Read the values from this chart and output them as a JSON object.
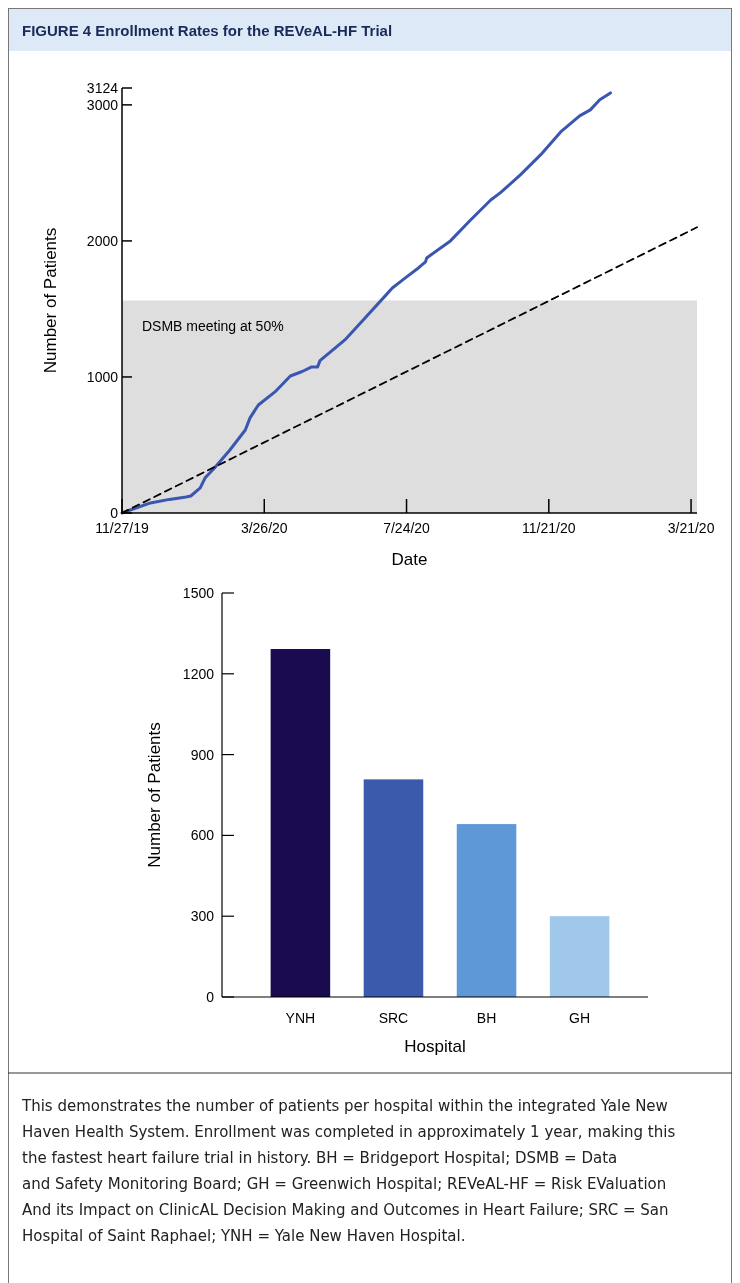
{
  "chart_data": [
    {
      "type": "line",
      "title": "FIGURE 4 Enrollment Rates for the REVeAL-HF Trial",
      "xlabel": "Date",
      "ylabel": "Number of Patients",
      "xlim": [
        "2019-11-27",
        "2021-03-26"
      ],
      "ylim": [
        0,
        3124
      ],
      "xticks": [
        {
          "value": "2019-11-27",
          "label": "11/27/19"
        },
        {
          "value": "2020-03-26",
          "label": "3/26/20"
        },
        {
          "value": "2020-07-24",
          "label": "7/24/20"
        },
        {
          "value": "2020-11-21",
          "label": "11/21/20"
        },
        {
          "value": "2021-03-21",
          "label": "3/21/20"
        }
      ],
      "yticks": [
        0,
        1000,
        2000,
        3000,
        3124
      ],
      "grid": false,
      "marker": "none",
      "bands": [
        {
          "axis": "y",
          "from": 0,
          "to": 1562,
          "label": "DSMB meeting at 50%",
          "color": "#dedede"
        }
      ],
      "series": [
        {
          "color": "#3a56b0",
          "line_style": "solid",
          "x": [
            "2019-11-27",
            "2019-12-04",
            "2019-12-21",
            "2020-01-06",
            "2020-01-20",
            "2020-01-24",
            "2020-02-01",
            "2020-02-05",
            "2020-02-13",
            "2020-02-26",
            "2020-03-10",
            "2020-03-14",
            "2020-03-21",
            "2020-04-04",
            "2020-04-17",
            "2020-04-27",
            "2020-05-05",
            "2020-05-10",
            "2020-05-12",
            "2020-06-02",
            "2020-06-19",
            "2020-07-06",
            "2020-07-12",
            "2020-07-23",
            "2020-08-03",
            "2020-08-09",
            "2020-08-10",
            "2020-08-30",
            "2020-09-16",
            "2020-10-03",
            "2020-10-11",
            "2020-10-28",
            "2020-11-14",
            "2020-12-01",
            "2020-12-17",
            "2020-12-26",
            "2021-01-03",
            "2021-01-12"
          ],
          "values": [
            0,
            22,
            74,
            100,
            118,
            125,
            184,
            257,
            331,
            463,
            610,
            699,
            794,
            890,
            1007,
            1040,
            1074,
            1074,
            1120,
            1272,
            1434,
            1596,
            1654,
            1728,
            1801,
            1846,
            1875,
            2000,
            2154,
            2301,
            2353,
            2485,
            2632,
            2801,
            2919,
            2963,
            3037,
            3088
          ]
        },
        {
          "color": "#000000",
          "line_style": "dashed",
          "x": [
            "2019-11-27",
            "2021-03-26"
          ],
          "values": [
            0,
            2100
          ]
        }
      ]
    },
    {
      "type": "bar",
      "xlabel": "Hospital",
      "ylabel": "Number of Patients",
      "categories": [
        "YNH",
        "SRC",
        "BH",
        "GH"
      ],
      "values": [
        1292,
        808,
        642,
        300
      ],
      "colors": [
        "#1a0a4f",
        "#3b5aab",
        "#5f98d6",
        "#9fc8eb"
      ],
      "ylim": [
        0,
        1500
      ],
      "yticks": [
        0,
        300,
        600,
        900,
        1200,
        1500
      ],
      "grid": false,
      "annotations": [
        "This demonstrates the number of patients per hospital within the integrated Yale New Haven Health System. Enrollment was completed in approximately 1 year, making this the fastest heart failure trial in history. BH = Bridgeport Hospital; DSMB = Data and Safety Monitoring Board; GH = Greenwich Hospital; REVeAL-HF = Risk EValuation And its Impact on ClinicAL Decision Making and Outcomes in Heart Failure; SRC = San Hospital of Saint Raphael; YNH = Yale New Haven Hospital."
      ]
    }
  ]
}
